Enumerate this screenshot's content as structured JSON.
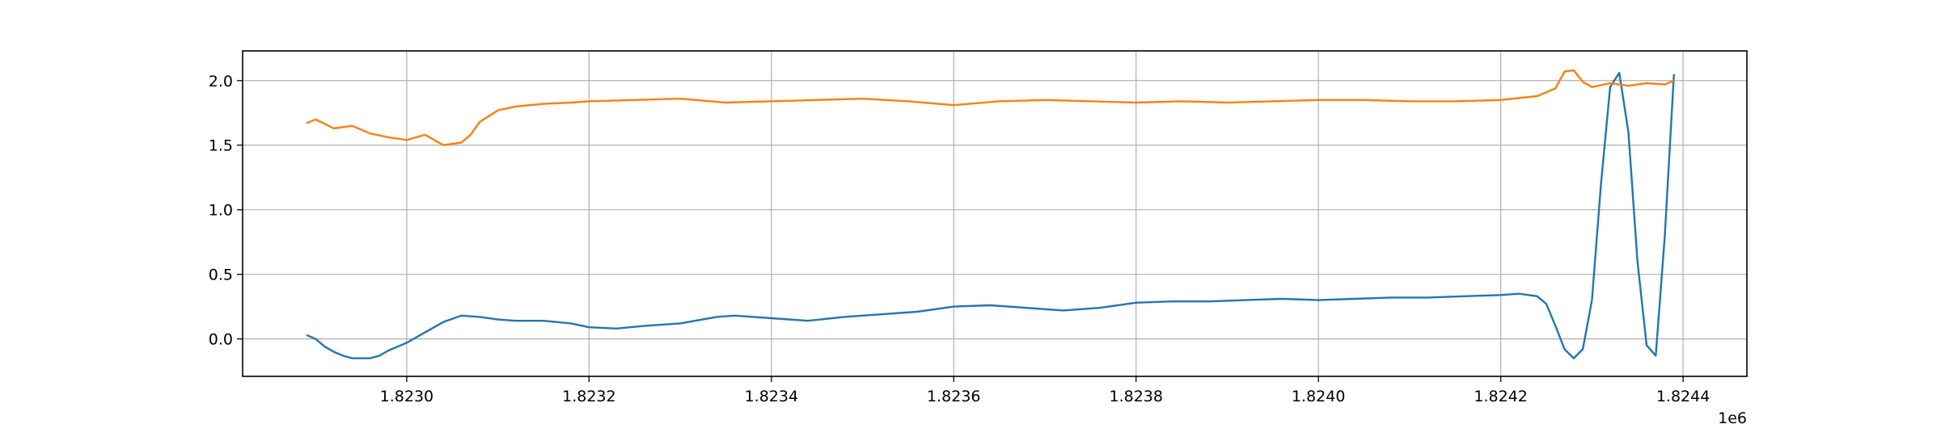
{
  "chart_data": {
    "type": "line",
    "title": "",
    "xlabel": "",
    "ylabel": "",
    "x_offset_label": "1e6",
    "x_scale": 1000000,
    "xlim": [
      1.82282,
      1.82447
    ],
    "ylim": [
      -0.29,
      2.23
    ],
    "grid": true,
    "x_ticks": [
      1.823,
      1.8232,
      1.8234,
      1.8236,
      1.8238,
      1.824,
      1.8242,
      1.8244
    ],
    "x_tick_labels": [
      "1.8230",
      "1.8232",
      "1.8234",
      "1.8236",
      "1.8238",
      "1.8240",
      "1.8242",
      "1.8244"
    ],
    "y_ticks": [
      0.0,
      0.5,
      1.0,
      1.5,
      2.0
    ],
    "y_tick_labels": [
      "0.0",
      "0.5",
      "1.0",
      "1.5",
      "2.0"
    ],
    "series": [
      {
        "color": "#1f77b4",
        "x": [
          1.82289,
          1.8229,
          1.82291,
          1.82292,
          1.82293,
          1.82294,
          1.82295,
          1.82296,
          1.82297,
          1.82298,
          1.823,
          1.82302,
          1.82304,
          1.82306,
          1.82308,
          1.8231,
          1.82312,
          1.82315,
          1.82318,
          1.8232,
          1.82323,
          1.82326,
          1.8233,
          1.82334,
          1.82336,
          1.8234,
          1.82344,
          1.82348,
          1.82352,
          1.82356,
          1.8236,
          1.82364,
          1.82368,
          1.82372,
          1.82376,
          1.8238,
          1.82384,
          1.82388,
          1.82392,
          1.82396,
          1.824,
          1.82404,
          1.82408,
          1.82412,
          1.82416,
          1.8242,
          1.82422,
          1.82424,
          1.82425,
          1.82426,
          1.82427,
          1.82428,
          1.82429,
          1.8243,
          1.82431,
          1.82432,
          1.82433,
          1.82434,
          1.82435,
          1.82436,
          1.82437,
          1.82438,
          1.82439
        ],
        "y": [
          0.03,
          0.0,
          -0.06,
          -0.1,
          -0.13,
          -0.15,
          -0.15,
          -0.15,
          -0.13,
          -0.09,
          -0.03,
          0.05,
          0.13,
          0.18,
          0.17,
          0.15,
          0.14,
          0.14,
          0.12,
          0.09,
          0.08,
          0.1,
          0.12,
          0.17,
          0.18,
          0.16,
          0.14,
          0.17,
          0.19,
          0.21,
          0.25,
          0.26,
          0.24,
          0.22,
          0.24,
          0.28,
          0.29,
          0.29,
          0.3,
          0.31,
          0.3,
          0.31,
          0.32,
          0.32,
          0.33,
          0.34,
          0.35,
          0.33,
          0.27,
          0.1,
          -0.08,
          -0.15,
          -0.08,
          0.3,
          1.2,
          1.95,
          2.06,
          1.6,
          0.6,
          -0.05,
          -0.13,
          0.8,
          2.05
        ]
      },
      {
        "color": "#ff7f0e",
        "x": [
          1.82289,
          1.8229,
          1.82292,
          1.82294,
          1.82296,
          1.82298,
          1.823,
          1.82302,
          1.82304,
          1.82306,
          1.82307,
          1.82308,
          1.8231,
          1.82312,
          1.82315,
          1.82318,
          1.8232,
          1.82325,
          1.8233,
          1.82335,
          1.8234,
          1.82345,
          1.8235,
          1.82355,
          1.8236,
          1.82365,
          1.8237,
          1.82375,
          1.8238,
          1.82385,
          1.8239,
          1.82395,
          1.824,
          1.82405,
          1.8241,
          1.82415,
          1.8242,
          1.82424,
          1.82426,
          1.82427,
          1.82428,
          1.82429,
          1.8243,
          1.82432,
          1.82434,
          1.82436,
          1.82438,
          1.82439
        ],
        "y": [
          1.67,
          1.7,
          1.63,
          1.65,
          1.59,
          1.56,
          1.54,
          1.58,
          1.5,
          1.52,
          1.58,
          1.68,
          1.77,
          1.8,
          1.82,
          1.83,
          1.84,
          1.85,
          1.86,
          1.83,
          1.84,
          1.85,
          1.86,
          1.84,
          1.81,
          1.84,
          1.85,
          1.84,
          1.83,
          1.84,
          1.83,
          1.84,
          1.85,
          1.85,
          1.84,
          1.84,
          1.85,
          1.88,
          1.94,
          2.07,
          2.08,
          1.99,
          1.95,
          1.98,
          1.96,
          1.98,
          1.97,
          2.0
        ]
      }
    ]
  }
}
